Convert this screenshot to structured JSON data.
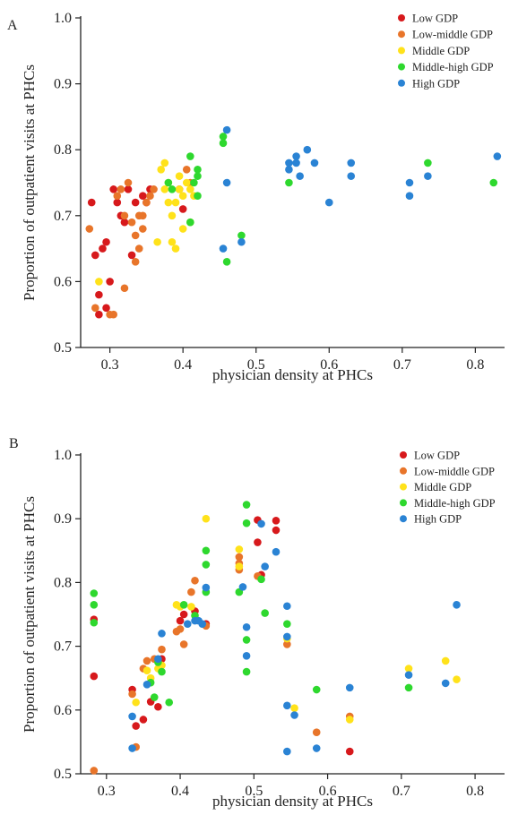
{
  "legend": {
    "categories": [
      "Low GDP",
      "Low-middle GDP",
      "Middle GDP",
      "Middle-high GDP",
      "High GDP"
    ],
    "colors": [
      "#d7191c",
      "#e8752a",
      "#ffe21a",
      "#2ed82e",
      "#2a83d4"
    ]
  },
  "chart_data": [
    {
      "type": "scatter",
      "panel_label": "A",
      "xlabel": "physician density at PHCs",
      "ylabel": "Proportion of outpatient visits at PHCs",
      "xlim": [
        0.26,
        0.84
      ],
      "ylim": [
        0.5,
        1.0
      ],
      "xticks": [
        0.3,
        0.4,
        0.5,
        0.6,
        0.7,
        0.8
      ],
      "xtick_labels": [
        "0.3",
        "0.4",
        "0.5",
        "0.6",
        "0.7",
        "0.8"
      ],
      "yticks": [
        0.5,
        0.6,
        0.7,
        0.8,
        0.9,
        1.0
      ],
      "ytick_labels": [
        "0.5",
        "0.6",
        "0.7",
        "0.8",
        "0.9",
        "1.0"
      ],
      "legend_position": "top-right",
      "series": [
        {
          "name": "Low GDP",
          "points": [
            [
              0.275,
              0.72
            ],
            [
              0.28,
              0.64
            ],
            [
              0.285,
              0.58
            ],
            [
              0.285,
              0.55
            ],
            [
              0.29,
              0.65
            ],
            [
              0.295,
              0.56
            ],
            [
              0.295,
              0.66
            ],
            [
              0.3,
              0.6
            ],
            [
              0.305,
              0.74
            ],
            [
              0.31,
              0.72
            ],
            [
              0.315,
              0.7
            ],
            [
              0.32,
              0.69
            ],
            [
              0.325,
              0.74
            ],
            [
              0.33,
              0.64
            ],
            [
              0.335,
              0.72
            ],
            [
              0.345,
              0.73
            ],
            [
              0.35,
              0.72
            ],
            [
              0.355,
              0.74
            ],
            [
              0.395,
              0.74
            ],
            [
              0.4,
              0.71
            ]
          ]
        },
        {
          "name": "Low-middle GDP",
          "points": [
            [
              0.272,
              0.68
            ],
            [
              0.28,
              0.56
            ],
            [
              0.3,
              0.55
            ],
            [
              0.305,
              0.55
            ],
            [
              0.31,
              0.73
            ],
            [
              0.315,
              0.74
            ],
            [
              0.32,
              0.7
            ],
            [
              0.32,
              0.59
            ],
            [
              0.325,
              0.75
            ],
            [
              0.33,
              0.69
            ],
            [
              0.335,
              0.67
            ],
            [
              0.335,
              0.63
            ],
            [
              0.34,
              0.65
            ],
            [
              0.34,
              0.7
            ],
            [
              0.345,
              0.7
            ],
            [
              0.345,
              0.68
            ],
            [
              0.35,
              0.72
            ],
            [
              0.355,
              0.73
            ],
            [
              0.36,
              0.74
            ],
            [
              0.405,
              0.77
            ],
            [
              0.41,
              0.75
            ]
          ]
        },
        {
          "name": "Middle GDP",
          "points": [
            [
              0.285,
              0.6
            ],
            [
              0.365,
              0.66
            ],
            [
              0.37,
              0.77
            ],
            [
              0.375,
              0.78
            ],
            [
              0.375,
              0.74
            ],
            [
              0.38,
              0.75
            ],
            [
              0.38,
              0.72
            ],
            [
              0.385,
              0.66
            ],
            [
              0.385,
              0.7
            ],
            [
              0.39,
              0.65
            ],
            [
              0.39,
              0.72
            ],
            [
              0.395,
              0.76
            ],
            [
              0.395,
              0.74
            ],
            [
              0.4,
              0.73
            ],
            [
              0.4,
              0.68
            ],
            [
              0.405,
              0.75
            ],
            [
              0.41,
              0.74
            ],
            [
              0.41,
              0.69
            ],
            [
              0.415,
              0.73
            ]
          ]
        },
        {
          "name": "Middle-high GDP",
          "points": [
            [
              0.38,
              0.75
            ],
            [
              0.385,
              0.74
            ],
            [
              0.41,
              0.79
            ],
            [
              0.41,
              0.69
            ],
            [
              0.415,
              0.75
            ],
            [
              0.42,
              0.77
            ],
            [
              0.42,
              0.76
            ],
            [
              0.42,
              0.73
            ],
            [
              0.455,
              0.81
            ],
            [
              0.455,
              0.82
            ],
            [
              0.46,
              0.63
            ],
            [
              0.48,
              0.67
            ],
            [
              0.545,
              0.75
            ],
            [
              0.735,
              0.78
            ],
            [
              0.825,
              0.75
            ]
          ]
        },
        {
          "name": "High GDP",
          "points": [
            [
              0.455,
              0.65
            ],
            [
              0.46,
              0.83
            ],
            [
              0.46,
              0.75
            ],
            [
              0.48,
              0.66
            ],
            [
              0.545,
              0.78
            ],
            [
              0.545,
              0.77
            ],
            [
              0.555,
              0.79
            ],
            [
              0.555,
              0.78
            ],
            [
              0.56,
              0.76
            ],
            [
              0.57,
              0.8
            ],
            [
              0.58,
              0.78
            ],
            [
              0.6,
              0.72
            ],
            [
              0.63,
              0.78
            ],
            [
              0.63,
              0.76
            ],
            [
              0.71,
              0.75
            ],
            [
              0.71,
              0.73
            ],
            [
              0.735,
              0.76
            ],
            [
              0.83,
              0.79
            ]
          ]
        }
      ]
    },
    {
      "type": "scatter",
      "panel_label": "B",
      "xlabel": "physician density at PHCs",
      "ylabel": "Proportion of outpatient visits at PHCs",
      "xlim": [
        0.265,
        0.84
      ],
      "ylim": [
        0.5,
        1.0
      ],
      "xticks": [
        0.3,
        0.4,
        0.5,
        0.6,
        0.7,
        0.8
      ],
      "xtick_labels": [
        "0.3",
        "0.4",
        "0.5",
        "0.6",
        "0.7",
        "0.8"
      ],
      "yticks": [
        0.5,
        0.6,
        0.7,
        0.8,
        0.9,
        1.0
      ],
      "ytick_labels": [
        "0.5",
        "0.6",
        "0.7",
        "0.8",
        "0.9",
        "1.0"
      ],
      "legend_position": "top-right",
      "series": [
        {
          "name": "Low GDP",
          "points": [
            [
              0.283,
              0.742
            ],
            [
              0.283,
              0.653
            ],
            [
              0.335,
              0.632
            ],
            [
              0.34,
              0.575
            ],
            [
              0.35,
              0.585
            ],
            [
              0.36,
              0.613
            ],
            [
              0.37,
              0.605
            ],
            [
              0.375,
              0.68
            ],
            [
              0.4,
              0.74
            ],
            [
              0.405,
              0.75
            ],
            [
              0.42,
              0.755
            ],
            [
              0.435,
              0.735
            ],
            [
              0.505,
              0.898
            ],
            [
              0.505,
              0.863
            ],
            [
              0.51,
              0.812
            ],
            [
              0.53,
              0.897
            ],
            [
              0.53,
              0.882
            ],
            [
              0.63,
              0.535
            ]
          ]
        },
        {
          "name": "Low-middle GDP",
          "points": [
            [
              0.283,
              0.505
            ],
            [
              0.335,
              0.625
            ],
            [
              0.34,
              0.542
            ],
            [
              0.35,
              0.665
            ],
            [
              0.355,
              0.677
            ],
            [
              0.365,
              0.68
            ],
            [
              0.375,
              0.695
            ],
            [
              0.395,
              0.723
            ],
            [
              0.4,
              0.727
            ],
            [
              0.405,
              0.703
            ],
            [
              0.415,
              0.785
            ],
            [
              0.42,
              0.803
            ],
            [
              0.435,
              0.732
            ],
            [
              0.48,
              0.84
            ],
            [
              0.48,
              0.83
            ],
            [
              0.48,
              0.82
            ],
            [
              0.505,
              0.81
            ],
            [
              0.545,
              0.703
            ],
            [
              0.585,
              0.565
            ],
            [
              0.63,
              0.59
            ]
          ]
        },
        {
          "name": "Middle GDP",
          "points": [
            [
              0.34,
              0.612
            ],
            [
              0.355,
              0.662
            ],
            [
              0.36,
              0.65
            ],
            [
              0.37,
              0.665
            ],
            [
              0.375,
              0.67
            ],
            [
              0.395,
              0.765
            ],
            [
              0.4,
              0.762
            ],
            [
              0.415,
              0.762
            ],
            [
              0.435,
              0.9
            ],
            [
              0.48,
              0.852
            ],
            [
              0.48,
              0.825
            ],
            [
              0.545,
              0.712
            ],
            [
              0.555,
              0.603
            ],
            [
              0.63,
              0.585
            ],
            [
              0.71,
              0.665
            ],
            [
              0.76,
              0.677
            ],
            [
              0.775,
              0.648
            ]
          ]
        },
        {
          "name": "Middle-high GDP",
          "points": [
            [
              0.283,
              0.783
            ],
            [
              0.283,
              0.765
            ],
            [
              0.283,
              0.737
            ],
            [
              0.36,
              0.643
            ],
            [
              0.365,
              0.62
            ],
            [
              0.37,
              0.675
            ],
            [
              0.375,
              0.66
            ],
            [
              0.385,
              0.612
            ],
            [
              0.405,
              0.765
            ],
            [
              0.42,
              0.748
            ],
            [
              0.435,
              0.85
            ],
            [
              0.435,
              0.828
            ],
            [
              0.435,
              0.785
            ],
            [
              0.48,
              0.785
            ],
            [
              0.49,
              0.922
            ],
            [
              0.49,
              0.893
            ],
            [
              0.49,
              0.71
            ],
            [
              0.49,
              0.66
            ],
            [
              0.51,
              0.805
            ],
            [
              0.515,
              0.752
            ],
            [
              0.545,
              0.735
            ],
            [
              0.585,
              0.632
            ],
            [
              0.71,
              0.635
            ]
          ]
        },
        {
          "name": "High GDP",
          "points": [
            [
              0.335,
              0.59
            ],
            [
              0.335,
              0.54
            ],
            [
              0.355,
              0.64
            ],
            [
              0.37,
              0.68
            ],
            [
              0.375,
              0.72
            ],
            [
              0.41,
              0.735
            ],
            [
              0.42,
              0.74
            ],
            [
              0.425,
              0.74
            ],
            [
              0.43,
              0.735
            ],
            [
              0.435,
              0.792
            ],
            [
              0.485,
              0.793
            ],
            [
              0.49,
              0.73
            ],
            [
              0.49,
              0.685
            ],
            [
              0.51,
              0.892
            ],
            [
              0.515,
              0.825
            ],
            [
              0.53,
              0.848
            ],
            [
              0.545,
              0.763
            ],
            [
              0.545,
              0.715
            ],
            [
              0.545,
              0.607
            ],
            [
              0.545,
              0.535
            ],
            [
              0.555,
              0.592
            ],
            [
              0.585,
              0.54
            ],
            [
              0.63,
              0.635
            ],
            [
              0.71,
              0.655
            ],
            [
              0.76,
              0.642
            ],
            [
              0.775,
              0.765
            ]
          ]
        }
      ]
    }
  ]
}
